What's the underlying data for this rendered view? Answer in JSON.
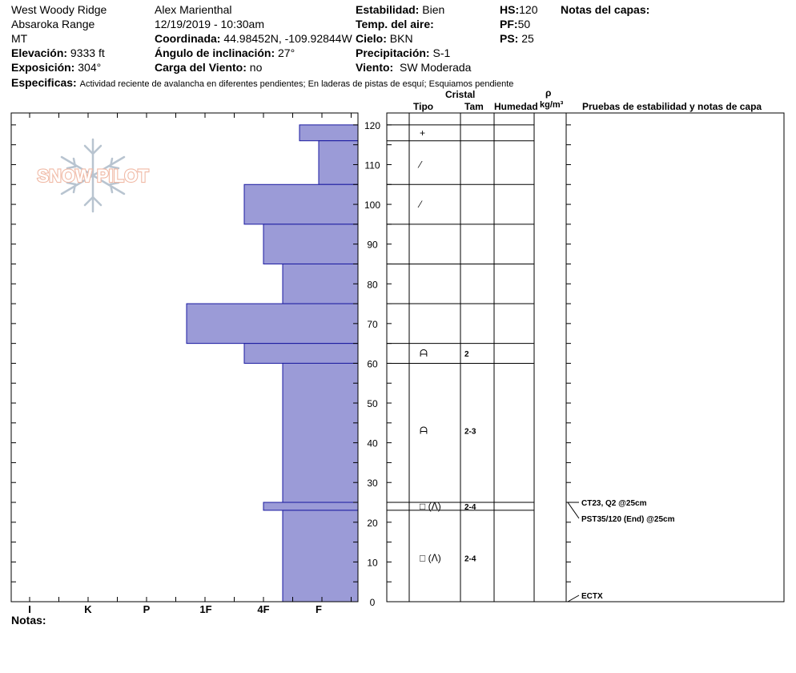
{
  "header": {
    "site": "West Woody Ridge",
    "range": "Absaroka Range",
    "state": "MT",
    "elevation_label": "Elevación:",
    "elevation_value": "9333 ft",
    "aspect_label": "Exposición:",
    "aspect_value": "304°",
    "observer": "Alex Marienthal",
    "datetime": "12/19/2019 - 10:30am",
    "coords_label": "Coordinada:",
    "coords_value": "44.98452N, -109.92844W",
    "slope_label": "Ángulo de inclinación:",
    "slope_value": "27°",
    "wind_loading_label": "Carga del Viento:",
    "wind_loading_value": "no",
    "stability_label": "Estabilidad:",
    "stability_value": "Bien",
    "air_temp_label": "Temp. del aire:",
    "air_temp_value": "",
    "sky_label": "Cielo:",
    "sky_value": "BKN",
    "precip_label": "Precipitación:",
    "precip_value": "S-1",
    "wind_label": "Viento:",
    "wind_value": "SW Moderada",
    "hs_label": "HS:",
    "hs_value": "120",
    "pf_label": "PF:",
    "pf_value": "50",
    "ps_label": "PS:",
    "ps_value": "25",
    "layer_notes_label": "Notas del capas:",
    "specifics_label": "Especificas:",
    "specifics_value": "Actividad reciente de avalancha en diferentes pendientes;  En laderas de pistas de esquí;  Esquiamos pendiente"
  },
  "logo_text": "SNOW PILOT",
  "columns": {
    "cristal": "Cristal",
    "tipo": "Tipo",
    "tam": "Tam",
    "humedad": "Humedad",
    "rho": "ρ",
    "density_unit": "kg/m³",
    "tests_title": "Pruebas de estabilidad y notas de capa"
  },
  "hardness_labels": [
    "I",
    "K",
    "P",
    "1F",
    "4F",
    "F"
  ],
  "depth_ticks": [
    0,
    10,
    20,
    30,
    40,
    50,
    60,
    70,
    80,
    90,
    100,
    110,
    120
  ],
  "colors": {
    "profile_fill": "#9b9bd7",
    "profile_stroke": "#1a1aa0"
  },
  "chart_data": {
    "type": "bar",
    "ylabel": "",
    "ylim": [
      0,
      120
    ],
    "hardness_scale": [
      "I",
      "K",
      "P",
      "1F",
      "4F",
      "F"
    ],
    "layers": [
      {
        "top": 120,
        "bottom": 116,
        "hardness": "F+"
      },
      {
        "top": 116,
        "bottom": 105,
        "hardness": "F"
      },
      {
        "top": 105,
        "bottom": 95,
        "hardness": "4F+"
      },
      {
        "top": 95,
        "bottom": 85,
        "hardness": "4F"
      },
      {
        "top": 85,
        "bottom": 75,
        "hardness": "4F-"
      },
      {
        "top": 75,
        "bottom": 65,
        "hardness": "1F+"
      },
      {
        "top": 65,
        "bottom": 60,
        "hardness": "4F+"
      },
      {
        "top": 60,
        "bottom": 25,
        "hardness": "4F-"
      },
      {
        "top": 25,
        "bottom": 23,
        "hardness": "4F"
      },
      {
        "top": 23,
        "bottom": 0,
        "hardness": "4F-"
      }
    ]
  },
  "grain_rows": [
    {
      "depth": 118,
      "symbol": "+",
      "size": ""
    },
    {
      "depth": 110,
      "symbol": "⁄",
      "size": ""
    },
    {
      "depth": 100,
      "symbol": "⁄",
      "size": ""
    },
    {
      "depth": 62.5,
      "symbol": "ᗩ",
      "size": "2"
    },
    {
      "depth": 43,
      "symbol": "ᗩ",
      "size": "2-3"
    },
    {
      "depth": 24,
      "symbol": "□ (ᐱ)",
      "size": "2-4"
    },
    {
      "depth": 11,
      "symbol": "□ (ᐱ)",
      "size": "2-4"
    }
  ],
  "tests": [
    {
      "depth": 25,
      "text": "CT23, Q2 @25cm"
    },
    {
      "depth": 25,
      "text": "PST35/120 (End) @25cm"
    },
    {
      "depth": 0,
      "text": "ECTX"
    }
  ],
  "footer": {
    "notes_label": "Notas:"
  }
}
